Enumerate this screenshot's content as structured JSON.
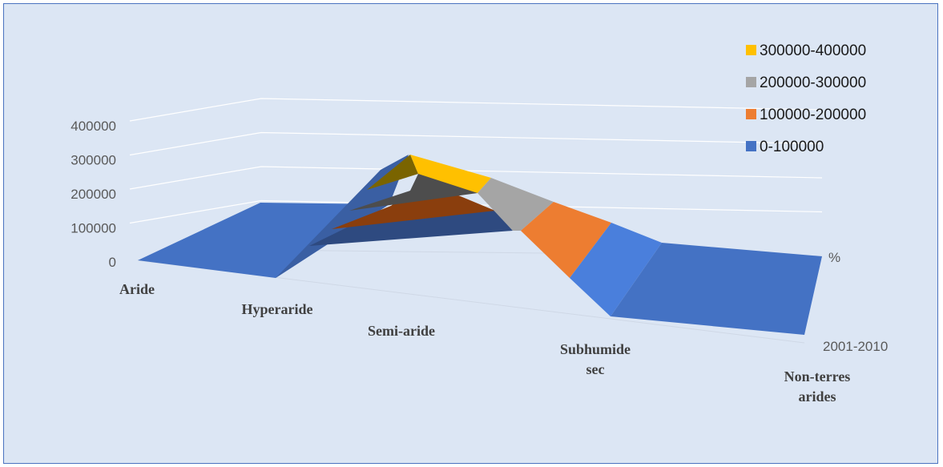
{
  "chart_data": {
    "type": "surface",
    "categories": [
      "Aride",
      "Hyperaride",
      "Semi-aride",
      "Subhumide sec",
      "Non-terres arides"
    ],
    "category_lines": [
      [
        "Aride"
      ],
      [
        "Hyperaride"
      ],
      [
        "Semi-aride"
      ],
      [
        "Subhumide",
        "sec"
      ],
      [
        "Non-terres",
        "arides"
      ]
    ],
    "depth_labels": [
      "%",
      "2001-2010"
    ],
    "y_ticks": [
      "0",
      "100000",
      "200000",
      "300000",
      "400000"
    ],
    "ylim": [
      0,
      400000
    ],
    "series": [
      {
        "values": [
          0,
          0,
          350000,
          0,
          0
        ]
      },
      {
        "values": [
          0,
          0,
          90000,
          0,
          0
        ]
      }
    ],
    "legend": {
      "position": "right",
      "items": [
        {
          "label": "300000-400000",
          "color": "#ffc000"
        },
        {
          "label": "200000-300000",
          "color": "#a5a5a5"
        },
        {
          "label": "100000-200000",
          "color": "#ed7d31"
        },
        {
          "label": "0-100000",
          "color": "#4472c4"
        }
      ]
    },
    "grid": true
  }
}
